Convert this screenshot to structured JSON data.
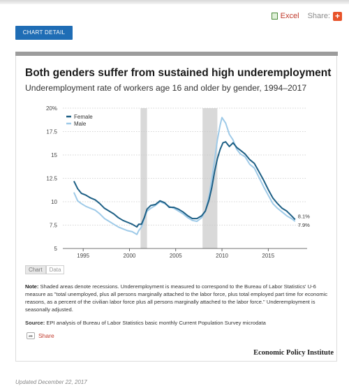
{
  "toolbar": {
    "excel_label": "Excel",
    "share_label": "Share:",
    "share_plus": "+"
  },
  "chart_detail_button": "CHART DETAIL",
  "chart_data": {
    "type": "line",
    "title": "Both genders suffer from sustained high underemployment",
    "subtitle": "Underemployment rate of workers age 16 and older by gender, 1994–2017",
    "xlabel": "",
    "ylabel": "",
    "xlim": [
      1992.8,
      2019.2
    ],
    "ylim": [
      5,
      20
    ],
    "yticks": [
      5,
      7.5,
      10,
      12.5,
      15,
      17.5,
      20
    ],
    "ytick_labels": [
      "5",
      "7.5",
      "10",
      "12.5",
      "15",
      "17.5",
      "20%"
    ],
    "xticks": [
      1995,
      2000,
      2005,
      2010,
      2015
    ],
    "grid": "horizontal dotted",
    "legend_position": "top-left",
    "recessions": [
      [
        2001.2,
        2001.9
      ],
      [
        2007.9,
        2009.5
      ]
    ],
    "end_labels": [
      "8.1%",
      "7.9%"
    ],
    "series": [
      {
        "name": "Female",
        "color": "#1d5f85",
        "points": [
          [
            1994.0,
            12.2
          ],
          [
            1994.4,
            11.4
          ],
          [
            1994.8,
            10.9
          ],
          [
            1995.3,
            10.7
          ],
          [
            1995.8,
            10.4
          ],
          [
            1996.3,
            10.2
          ],
          [
            1996.8,
            9.8
          ],
          [
            1997.3,
            9.3
          ],
          [
            1997.8,
            9.0
          ],
          [
            1998.3,
            8.7
          ],
          [
            1998.8,
            8.3
          ],
          [
            1999.3,
            8.0
          ],
          [
            1999.8,
            7.8
          ],
          [
            2000.3,
            7.6
          ],
          [
            2000.8,
            7.3
          ],
          [
            2001.0,
            7.6
          ],
          [
            2001.3,
            7.6
          ],
          [
            2001.6,
            8.3
          ],
          [
            2001.9,
            9.2
          ],
          [
            2002.3,
            9.6
          ],
          [
            2002.8,
            9.7
          ],
          [
            2003.3,
            10.1
          ],
          [
            2003.8,
            9.9
          ],
          [
            2004.3,
            9.4
          ],
          [
            2004.8,
            9.4
          ],
          [
            2005.3,
            9.2
          ],
          [
            2005.8,
            8.9
          ],
          [
            2006.3,
            8.5
          ],
          [
            2006.8,
            8.2
          ],
          [
            2007.3,
            8.2
          ],
          [
            2007.8,
            8.5
          ],
          [
            2008.2,
            9.0
          ],
          [
            2008.6,
            10.2
          ],
          [
            2008.9,
            11.5
          ],
          [
            2009.2,
            13.2
          ],
          [
            2009.5,
            14.6
          ],
          [
            2009.8,
            15.6
          ],
          [
            2010.1,
            16.3
          ],
          [
            2010.4,
            16.4
          ],
          [
            2010.8,
            15.9
          ],
          [
            2011.2,
            16.3
          ],
          [
            2011.6,
            15.8
          ],
          [
            2012.0,
            15.5
          ],
          [
            2012.5,
            15.1
          ],
          [
            2013.0,
            14.5
          ],
          [
            2013.5,
            14.1
          ],
          [
            2014.0,
            13.2
          ],
          [
            2014.5,
            12.3
          ],
          [
            2015.0,
            11.3
          ],
          [
            2015.5,
            10.4
          ],
          [
            2016.0,
            9.8
          ],
          [
            2016.5,
            9.3
          ],
          [
            2017.0,
            9.0
          ],
          [
            2017.5,
            8.5
          ],
          [
            2017.9,
            8.1
          ]
        ]
      },
      {
        "name": "Male",
        "color": "#9ecae8",
        "points": [
          [
            1994.0,
            11.0
          ],
          [
            1994.4,
            10.1
          ],
          [
            1994.8,
            9.8
          ],
          [
            1995.3,
            9.5
          ],
          [
            1995.8,
            9.3
          ],
          [
            1996.3,
            9.1
          ],
          [
            1996.8,
            8.7
          ],
          [
            1997.3,
            8.2
          ],
          [
            1997.8,
            7.9
          ],
          [
            1998.3,
            7.6
          ],
          [
            1998.8,
            7.3
          ],
          [
            1999.3,
            7.1
          ],
          [
            1999.8,
            6.9
          ],
          [
            2000.3,
            6.8
          ],
          [
            2000.8,
            6.5
          ],
          [
            2001.0,
            6.9
          ],
          [
            2001.3,
            7.3
          ],
          [
            2001.6,
            8.2
          ],
          [
            2001.9,
            9.0
          ],
          [
            2002.3,
            9.3
          ],
          [
            2002.8,
            9.6
          ],
          [
            2003.3,
            10.0
          ],
          [
            2003.8,
            9.8
          ],
          [
            2004.3,
            9.5
          ],
          [
            2004.8,
            9.3
          ],
          [
            2005.3,
            9.0
          ],
          [
            2005.8,
            8.7
          ],
          [
            2006.3,
            8.3
          ],
          [
            2006.8,
            8.0
          ],
          [
            2007.3,
            7.9
          ],
          [
            2007.8,
            8.3
          ],
          [
            2008.2,
            9.0
          ],
          [
            2008.6,
            10.6
          ],
          [
            2008.9,
            12.4
          ],
          [
            2009.2,
            14.4
          ],
          [
            2009.5,
            16.6
          ],
          [
            2009.8,
            18.2
          ],
          [
            2010.0,
            19.0
          ],
          [
            2010.4,
            18.4
          ],
          [
            2010.8,
            17.2
          ],
          [
            2011.2,
            16.6
          ],
          [
            2011.6,
            15.6
          ],
          [
            2012.0,
            15.1
          ],
          [
            2012.5,
            14.8
          ],
          [
            2013.0,
            14.0
          ],
          [
            2013.5,
            13.6
          ],
          [
            2014.0,
            12.6
          ],
          [
            2014.5,
            11.6
          ],
          [
            2015.0,
            10.7
          ],
          [
            2015.5,
            9.8
          ],
          [
            2016.0,
            9.3
          ],
          [
            2016.5,
            8.9
          ],
          [
            2017.0,
            8.5
          ],
          [
            2017.5,
            8.2
          ],
          [
            2017.9,
            7.9
          ]
        ]
      }
    ]
  },
  "tabs": {
    "chart": "Chart",
    "data": "Data"
  },
  "note_label": "Note:",
  "note_text": "Shaded areas denote recessions. Underemployment is measured to correspond to the Bureau of Labor Statistics' U-6 measure as \"total unemployed, plus all persons marginally attached to the labor force, plus total employed part time for economic reasons, as a percent of the civilian labor force plus all persons marginally attached to the labor force.\"  Underemployment is seasonally adjusted.",
  "source_label": "Source:",
  "source_text": "EPI analysis of Bureau of Labor Statistics  basic monthly Current Population Survey microdata",
  "share_link": "Share",
  "organization": "Economic Policy Institute",
  "updated": "Updated December 22, 2017"
}
